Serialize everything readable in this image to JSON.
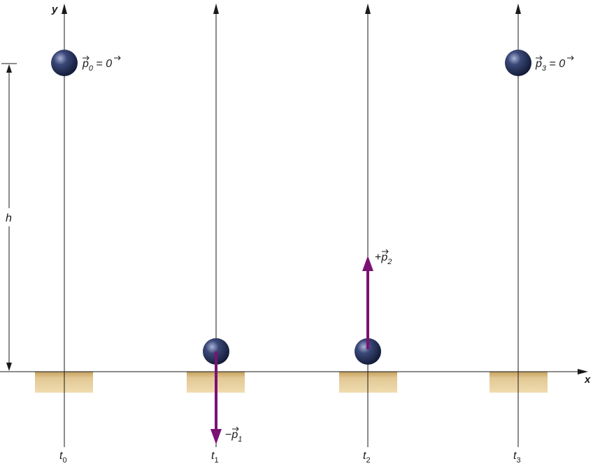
{
  "axes": {
    "y_label": "y",
    "x_label": "x"
  },
  "height_label": "h",
  "frames": [
    {
      "time_main": "t",
      "time_sub": "0",
      "ball_position": "top",
      "momentum_label": {
        "sign": "",
        "main": "p",
        "sub": "0",
        "equals": " = ",
        "rhs": "0"
      }
    },
    {
      "time_main": "t",
      "time_sub": "1",
      "ball_position": "ground",
      "momentum_arrow": "down",
      "momentum_label": {
        "sign": "−",
        "main": "p",
        "sub": "1",
        "equals": "",
        "rhs": ""
      }
    },
    {
      "time_main": "t",
      "time_sub": "2",
      "ball_position": "ground",
      "momentum_arrow": "up",
      "momentum_label": {
        "sign": "+",
        "main": "p",
        "sub": "2",
        "equals": "",
        "rhs": ""
      }
    },
    {
      "time_main": "t",
      "time_sub": "3",
      "ball_position": "top",
      "momentum_label": {
        "sign": "",
        "main": "p",
        "sub": "3",
        "equals": " = ",
        "rhs": "0"
      }
    }
  ],
  "colors": {
    "arrow": "#7a1273",
    "ground": "#d8b878",
    "ball_dark": "#151d3c",
    "ball_light": "#8e9bc6",
    "line": "#1a1a1a"
  }
}
